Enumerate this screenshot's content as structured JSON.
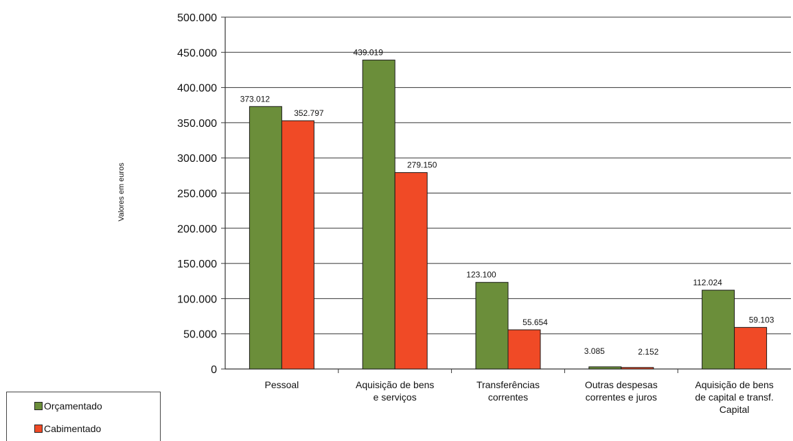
{
  "chart_data": {
    "type": "bar",
    "ylabel": "Valores em euros",
    "xlabel": "",
    "ylim": [
      0,
      500000
    ],
    "ytick_labels": [
      "0",
      "50.000",
      "100.000",
      "150.000",
      "200.000",
      "250.000",
      "300.000",
      "350.000",
      "400.000",
      "450.000",
      "500.000"
    ],
    "ytick_values": [
      0,
      50000,
      100000,
      150000,
      200000,
      250000,
      300000,
      350000,
      400000,
      450000,
      500000
    ],
    "categories": [
      [
        "Pessoal"
      ],
      [
        "Aquisição de bens",
        "e serviços"
      ],
      [
        "Transferências",
        "correntes"
      ],
      [
        "Outras despesas",
        "correntes e juros"
      ],
      [
        "Aquisição de bens",
        "de capital e transf.",
        "Capital"
      ]
    ],
    "series": [
      {
        "name": "Orçamentado",
        "color": "#6b8e3a",
        "values": [
          373012,
          439019,
          123100,
          3085,
          112024
        ],
        "labels": [
          "373.012",
          "439.019",
          "123.100",
          "3.085",
          "112.024"
        ]
      },
      {
        "name": "Cabimentado",
        "color": "#f04a26",
        "values": [
          352797,
          279150,
          55654,
          2152,
          59103
        ],
        "labels": [
          "352.797",
          "279.150",
          "55.654",
          "2.152",
          "59.103"
        ]
      }
    ],
    "grid": true,
    "legend_position": "bottom-left"
  }
}
